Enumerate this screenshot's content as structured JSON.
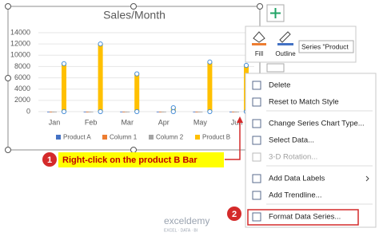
{
  "chart": {
    "type": "bar",
    "title": "Sales/Month",
    "categories": [
      "Jan",
      "Feb",
      "Mar",
      "Apr",
      "May",
      "Jun"
    ],
    "series": [
      {
        "name": "Product A",
        "color": "#4472c4",
        "values": [
          0,
          0,
          0,
          0,
          0,
          0
        ]
      },
      {
        "name": "Column 1",
        "color": "#ed7d31",
        "values": [
          0,
          0,
          0,
          0,
          0,
          0
        ]
      },
      {
        "name": "Column 2",
        "color": "#a5a5a5",
        "values": [
          0,
          0,
          0,
          0,
          0,
          0
        ]
      },
      {
        "name": "Product B",
        "color": "#ffc000",
        "values": [
          8500,
          12000,
          6700,
          700,
          8800,
          8200
        ],
        "selected": true
      }
    ],
    "ylim": [
      0,
      14000
    ],
    "yticks": [
      0,
      2000,
      4000,
      6000,
      8000,
      10000,
      12000,
      14000
    ]
  },
  "toolbar": {
    "fill": "Fill",
    "outline": "Outline",
    "series_selector": "Series \"Product"
  },
  "menu": {
    "items": [
      {
        "label": "Delete"
      },
      {
        "label": "Reset to Match Style",
        "separator_after": true
      },
      {
        "label": "Change Series Chart Type..."
      },
      {
        "label": "Select Data..."
      },
      {
        "label": "3-D Rotation...",
        "disabled": true,
        "separator_after": true
      },
      {
        "label": "Add Data Labels",
        "submenu": true
      },
      {
        "label": "Add Trendline...",
        "separator_after": true
      },
      {
        "label": "Format Data Series...",
        "highlighted": true
      }
    ]
  },
  "annotations": {
    "step1_number": "1",
    "step1_text": "Right-click on the product B Bar",
    "step2_number": "2"
  },
  "watermark": {
    "brand": "exceldemy",
    "tagline": "EXCEL · DATA · BI"
  }
}
